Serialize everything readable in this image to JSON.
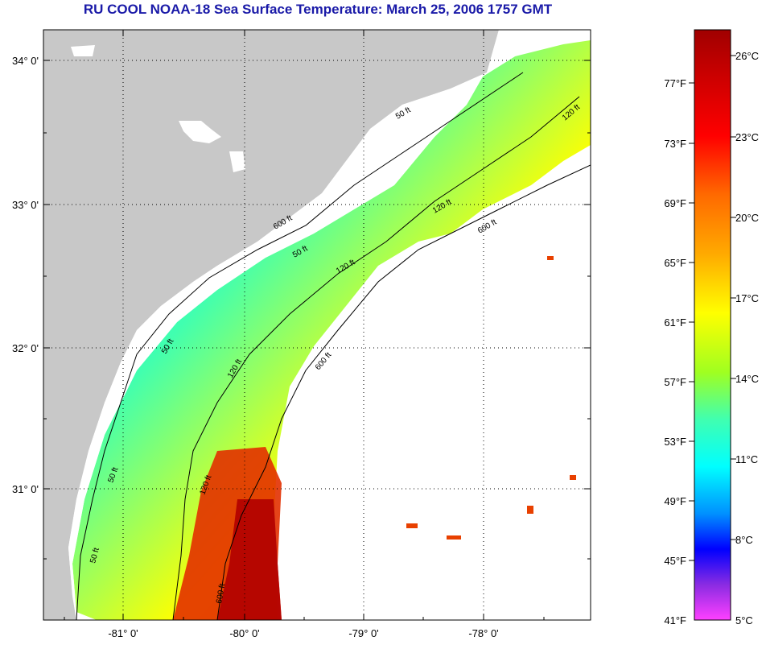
{
  "title": "RU COOL  NOAA-18  Sea Surface Temperature:  March 25, 2006 1757 GMT",
  "map": {
    "lat_labels": [
      "34° 0'",
      "33° 0'",
      "32° 0'",
      "31° 0'"
    ],
    "lon_labels": [
      "-81° 0'",
      "-80° 0'",
      "-79° 0'",
      "-78° 0'"
    ],
    "isobath_labels": [
      "50 ft",
      "120 ft",
      "600 ft",
      "50 ft",
      "120 ft",
      "600 ft",
      "50 ft",
      "120 ft",
      "600 ft",
      "50 ft",
      "120 ft",
      "600 ft",
      "50 ft",
      "120 ft"
    ],
    "colors": {
      "land": "#c8c8c8",
      "cloud": "#ffffff",
      "grid": "#000000"
    }
  },
  "colorbar": {
    "fahrenheit_labels": [
      "77°F",
      "73°F",
      "69°F",
      "65°F",
      "61°F",
      "57°F",
      "53°F",
      "49°F",
      "45°F",
      "41°F"
    ],
    "celsius_labels": [
      "26°C",
      "23°C",
      "20°C",
      "17°C",
      "14°C",
      "11°C",
      "8°C",
      "5°C"
    ],
    "colors_top_to_bottom": [
      "#a00000",
      "#cc0000",
      "#ff0000",
      "#ff6a00",
      "#ffaa00",
      "#ffff00",
      "#a0ff20",
      "#40ffb0",
      "#00ffff",
      "#0090ff",
      "#0000ff",
      "#8a2be2",
      "#ff40ff"
    ]
  }
}
